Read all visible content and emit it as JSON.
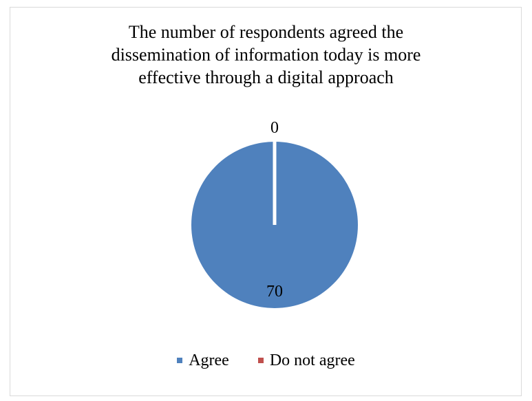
{
  "chart_data": {
    "type": "pie",
    "title_lines": [
      "The number of respondents agreed the",
      "dissemination of information today is more",
      "effective through a digital approach"
    ],
    "labels": [
      "Agree",
      "Do not agree"
    ],
    "values": [
      70,
      0
    ],
    "colors": [
      "#4f81bd",
      "#c0504d"
    ],
    "data_labels": [
      "70",
      "0"
    ],
    "legend_position": "bottom"
  }
}
